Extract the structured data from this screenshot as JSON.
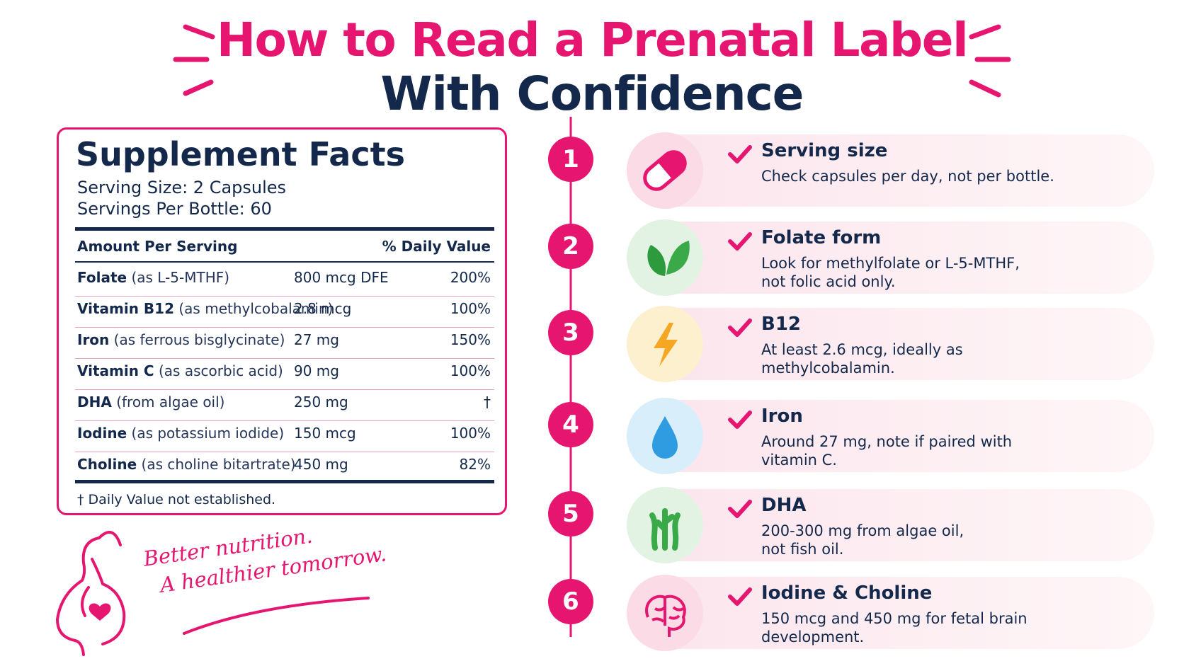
{
  "header": {
    "title_line1": "How to Read a Prenatal Label",
    "title_line2": "With Confidence"
  },
  "facts": {
    "title": "Supplement Facts",
    "serving_size": "Serving Size: 2 Capsules",
    "servings_per_bottle": "Servings Per Bottle: 60",
    "header_amount": "Amount Per Serving",
    "header_daily_value": "% Daily Value",
    "rows": [
      {
        "name": "Folate",
        "detail": "(as L-5-MTHF)",
        "amount": "800 mcg DFE",
        "dv": "200%"
      },
      {
        "name": "Vitamin B12",
        "detail": "(as methylcobalamin)",
        "amount": "2.8 mcg",
        "dv": "100%"
      },
      {
        "name": "Iron",
        "detail": "(as ferrous bisglycinate)",
        "amount": "27 mg",
        "dv": "150%"
      },
      {
        "name": "Vitamin C",
        "detail": "(as ascorbic acid)",
        "amount": "90 mg",
        "dv": "100%"
      },
      {
        "name": "DHA",
        "detail": "(from algae oil)",
        "amount": "250 mg",
        "dv": "†"
      },
      {
        "name": "Iodine",
        "detail": "(as potassium iodide)",
        "amount": "150 mcg",
        "dv": "100%"
      },
      {
        "name": "Choline",
        "detail": "(as choline bitartrate)",
        "amount": "450 mg",
        "dv": "82%"
      }
    ],
    "footnote": "† Daily Value not established."
  },
  "tagline": [
    "Better nutrition.",
    "A healthier tomorrow."
  ],
  "steps": [
    {
      "number": "1",
      "title": "Serving size",
      "text": [
        "Check capsules per day, not per bottle."
      ]
    },
    {
      "number": "2",
      "title": "Folate form",
      "text": [
        "Look for methylfolate or L-5-MTHF,",
        "not folic acid only."
      ]
    },
    {
      "number": "3",
      "title": "B12",
      "text": [
        "At least 2.6 mcg, ideally as",
        "methylcobalamin."
      ]
    },
    {
      "number": "4",
      "title": "Iron",
      "text": [
        "Around 27 mg, note if paired with",
        "vitamin C."
      ]
    },
    {
      "number": "5",
      "title": "DHA",
      "text": [
        "200-300 mg from algae oil,",
        "not fish oil."
      ]
    },
    {
      "number": "6",
      "title": "Iodine & Choline",
      "text": [
        "150 mcg and 450 mg for fetal brain",
        "development."
      ]
    }
  ]
}
